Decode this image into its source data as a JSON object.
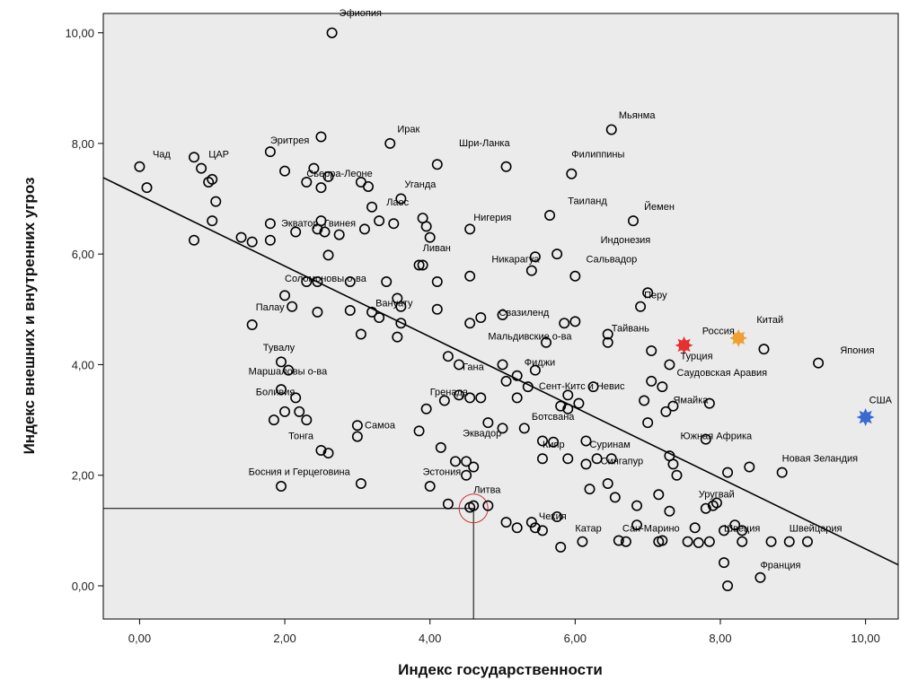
{
  "chart_data": {
    "type": "scatter",
    "xlabel": "Индекс государственности",
    "ylabel": "Индекс внешних и внутренних угроз",
    "xlim": [
      -0.5,
      10.45
    ],
    "ylim": [
      -0.6,
      10.35
    ],
    "x_ticks": [
      0,
      2,
      4,
      6,
      8,
      10
    ],
    "y_ticks": [
      0,
      2,
      4,
      6,
      8,
      10
    ],
    "x_tick_labels": [
      "0,00",
      "2,00",
      "4,00",
      "6,00",
      "8,00",
      "10,00"
    ],
    "y_tick_labels": [
      "0,00",
      "2,00",
      "4,00",
      "6,00",
      "8,00",
      "10,00"
    ],
    "grid": false,
    "regression_line": {
      "x": [
        -0.5,
        10.45
      ],
      "y": [
        7.38,
        0.38
      ]
    },
    "reference": {
      "x": 4.6,
      "y": 1.4,
      "circle_color": "#cc3333"
    },
    "highlighted": [
      {
        "label": "Россия",
        "x": 7.5,
        "y": 4.35,
        "color": "#e83030"
      },
      {
        "label": "Китай",
        "x": 8.25,
        "y": 4.48,
        "color": "#f0a030"
      },
      {
        "label": "США",
        "x": 10.0,
        "y": 3.05,
        "color": "#3a6ad0"
      }
    ],
    "labels": [
      {
        "text": "Эфиопия",
        "x": 2.75,
        "y": 10.3
      },
      {
        "text": "Мьянма",
        "x": 6.6,
        "y": 8.45
      },
      {
        "text": "Ирак",
        "x": 3.55,
        "y": 8.2
      },
      {
        "text": "Шри-Ланка",
        "x": 4.4,
        "y": 7.95
      },
      {
        "text": "Эритрея",
        "x": 1.8,
        "y": 8.0
      },
      {
        "text": "Чад",
        "x": 0.18,
        "y": 7.75
      },
      {
        "text": "ЦАР",
        "x": 0.95,
        "y": 7.75
      },
      {
        "text": "Филиппины",
        "x": 5.95,
        "y": 7.75
      },
      {
        "text": "Сьерра-Леоне",
        "x": 2.3,
        "y": 7.4
      },
      {
        "text": "Уганда",
        "x": 3.65,
        "y": 7.2
      },
      {
        "text": "Таиланд",
        "x": 5.9,
        "y": 6.9
      },
      {
        "text": "Йемен",
        "x": 6.95,
        "y": 6.8
      },
      {
        "text": "Лаос",
        "x": 3.4,
        "y": 6.88
      },
      {
        "text": "Нигерия",
        "x": 4.6,
        "y": 6.6
      },
      {
        "text": "Экватор. Гвинея",
        "x": 1.95,
        "y": 6.5
      },
      {
        "text": "Индонезия",
        "x": 6.35,
        "y": 6.2
      },
      {
        "text": "Ливан",
        "x": 3.9,
        "y": 6.05
      },
      {
        "text": "Никарагуа",
        "x": 4.85,
        "y": 5.85
      },
      {
        "text": "Сальвадор",
        "x": 6.15,
        "y": 5.85
      },
      {
        "text": "Соломоновы о-ва",
        "x": 2.0,
        "y": 5.5
      },
      {
        "text": "Перу",
        "x": 6.95,
        "y": 5.2
      },
      {
        "text": "Палау",
        "x": 1.6,
        "y": 4.98
      },
      {
        "text": "Вануату",
        "x": 3.25,
        "y": 5.05
      },
      {
        "text": "Свазиленд",
        "x": 4.95,
        "y": 4.88
      },
      {
        "text": "Тайвань",
        "x": 6.5,
        "y": 4.6
      },
      {
        "text": "Россия",
        "x": 7.75,
        "y": 4.55
      },
      {
        "text": "Китай",
        "x": 8.5,
        "y": 4.75
      },
      {
        "text": "Мальдивские о-ва",
        "x": 4.8,
        "y": 4.45
      },
      {
        "text": "Тувалу",
        "x": 1.7,
        "y": 4.25
      },
      {
        "text": "Турция",
        "x": 7.45,
        "y": 4.1
      },
      {
        "text": "Япония",
        "x": 9.65,
        "y": 4.2
      },
      {
        "text": "Фиджи",
        "x": 5.3,
        "y": 3.98
      },
      {
        "text": "Гана",
        "x": 4.45,
        "y": 3.9
      },
      {
        "text": "Маршаловы о-ва",
        "x": 1.5,
        "y": 3.82
      },
      {
        "text": "Саудовская Аравия",
        "x": 7.4,
        "y": 3.8
      },
      {
        "text": "Сент-Китс и Невис",
        "x": 5.5,
        "y": 3.55
      },
      {
        "text": "Боливия",
        "x": 1.6,
        "y": 3.45
      },
      {
        "text": "Гренада",
        "x": 4.0,
        "y": 3.45
      },
      {
        "text": "США",
        "x": 10.05,
        "y": 3.3
      },
      {
        "text": "Ямайка",
        "x": 7.35,
        "y": 3.3
      },
      {
        "text": "Ботсвана",
        "x": 5.4,
        "y": 3.0
      },
      {
        "text": "Самоа",
        "x": 3.1,
        "y": 2.85
      },
      {
        "text": "Тонга",
        "x": 2.05,
        "y": 2.65
      },
      {
        "text": "Эквадор",
        "x": 4.45,
        "y": 2.7
      },
      {
        "text": "Южная Африка",
        "x": 7.45,
        "y": 2.65
      },
      {
        "text": "Кипр",
        "x": 5.55,
        "y": 2.5
      },
      {
        "text": "Суринам",
        "x": 6.2,
        "y": 2.5
      },
      {
        "text": "Новая Зеландия",
        "x": 8.85,
        "y": 2.25
      },
      {
        "text": "Сингапур",
        "x": 6.35,
        "y": 2.2
      },
      {
        "text": "Босния и Герцеговина",
        "x": 1.5,
        "y": 2.0
      },
      {
        "text": "Эстония",
        "x": 3.9,
        "y": 2.0
      },
      {
        "text": "Уругвай",
        "x": 7.7,
        "y": 1.6
      },
      {
        "text": "Литва",
        "x": 4.6,
        "y": 1.68
      },
      {
        "text": "Чехия",
        "x": 5.5,
        "y": 1.2
      },
      {
        "text": "Катар",
        "x": 6.0,
        "y": 0.98
      },
      {
        "text": "Сан-Марино",
        "x": 6.65,
        "y": 0.98
      },
      {
        "text": "Швеция",
        "x": 8.05,
        "y": 0.98
      },
      {
        "text": "Швейцария",
        "x": 8.95,
        "y": 0.98
      },
      {
        "text": "Франция",
        "x": 8.55,
        "y": 0.32
      }
    ],
    "series": [
      {
        "points": [
          [
            2.65,
            10.0
          ],
          [
            0.0,
            7.58
          ],
          [
            0.1,
            7.2
          ],
          [
            0.75,
            7.75
          ],
          [
            0.85,
            7.55
          ],
          [
            0.95,
            7.3
          ],
          [
            1.0,
            7.35
          ],
          [
            1.05,
            6.95
          ],
          [
            1.0,
            6.6
          ],
          [
            0.75,
            6.25
          ],
          [
            1.8,
            7.85
          ],
          [
            2.5,
            8.12
          ],
          [
            2.0,
            7.5
          ],
          [
            2.3,
            7.3
          ],
          [
            2.4,
            7.55
          ],
          [
            2.5,
            7.2
          ],
          [
            2.6,
            7.4
          ],
          [
            3.05,
            7.3
          ],
          [
            3.15,
            7.22
          ],
          [
            3.45,
            8.0
          ],
          [
            4.1,
            7.62
          ],
          [
            5.05,
            7.58
          ],
          [
            6.5,
            8.25
          ],
          [
            5.95,
            7.45
          ],
          [
            3.2,
            6.85
          ],
          [
            3.3,
            6.6
          ],
          [
            3.5,
            6.55
          ],
          [
            3.6,
            7.0
          ],
          [
            3.9,
            6.65
          ],
          [
            3.95,
            6.5
          ],
          [
            4.0,
            6.3
          ],
          [
            4.55,
            6.45
          ],
          [
            1.4,
            6.3
          ],
          [
            1.55,
            6.22
          ],
          [
            1.8,
            6.55
          ],
          [
            1.8,
            6.25
          ],
          [
            2.15,
            6.4
          ],
          [
            2.45,
            6.45
          ],
          [
            2.5,
            6.6
          ],
          [
            2.55,
            6.4
          ],
          [
            2.75,
            6.35
          ],
          [
            2.6,
            5.98
          ],
          [
            3.1,
            6.45
          ],
          [
            5.65,
            6.7
          ],
          [
            6.8,
            6.6
          ],
          [
            5.75,
            6.0
          ],
          [
            5.45,
            5.95
          ],
          [
            3.85,
            5.8
          ],
          [
            3.9,
            5.8
          ],
          [
            4.1,
            5.5
          ],
          [
            4.55,
            5.6
          ],
          [
            5.4,
            5.7
          ],
          [
            6.0,
            5.6
          ],
          [
            7.0,
            5.3
          ],
          [
            6.9,
            5.05
          ],
          [
            2.3,
            5.5
          ],
          [
            2.45,
            5.5
          ],
          [
            2.9,
            5.5
          ],
          [
            3.4,
            5.5
          ],
          [
            3.55,
            5.2
          ],
          [
            3.6,
            5.05
          ],
          [
            2.0,
            5.25
          ],
          [
            2.1,
            5.05
          ],
          [
            1.55,
            4.72
          ],
          [
            2.45,
            4.95
          ],
          [
            2.9,
            4.98
          ],
          [
            3.2,
            4.95
          ],
          [
            3.3,
            4.85
          ],
          [
            3.6,
            4.75
          ],
          [
            3.55,
            4.5
          ],
          [
            3.05,
            4.55
          ],
          [
            4.1,
            5.0
          ],
          [
            4.55,
            4.75
          ],
          [
            4.7,
            4.85
          ],
          [
            5.0,
            4.9
          ],
          [
            5.85,
            4.75
          ],
          [
            6.0,
            4.78
          ],
          [
            6.45,
            4.55
          ],
          [
            6.45,
            4.4
          ],
          [
            5.6,
            4.4
          ],
          [
            7.5,
            4.35
          ],
          [
            8.25,
            4.48
          ],
          [
            8.6,
            4.28
          ],
          [
            9.35,
            4.03
          ],
          [
            7.05,
            4.25
          ],
          [
            7.3,
            4.0
          ],
          [
            1.95,
            4.05
          ],
          [
            2.05,
            3.9
          ],
          [
            4.25,
            4.15
          ],
          [
            4.4,
            4.0
          ],
          [
            5.0,
            4.0
          ],
          [
            5.45,
            3.9
          ],
          [
            5.2,
            3.8
          ],
          [
            5.05,
            3.7
          ],
          [
            5.35,
            3.6
          ],
          [
            1.95,
            3.55
          ],
          [
            2.15,
            3.4
          ],
          [
            2.0,
            3.15
          ],
          [
            1.85,
            3.0
          ],
          [
            2.2,
            3.15
          ],
          [
            2.3,
            3.0
          ],
          [
            3.95,
            3.2
          ],
          [
            4.2,
            3.35
          ],
          [
            4.4,
            3.45
          ],
          [
            4.55,
            3.4
          ],
          [
            4.7,
            3.4
          ],
          [
            5.2,
            3.4
          ],
          [
            5.9,
            3.45
          ],
          [
            6.25,
            3.6
          ],
          [
            6.95,
            3.35
          ],
          [
            7.05,
            3.7
          ],
          [
            7.2,
            3.6
          ],
          [
            7.25,
            3.15
          ],
          [
            7.35,
            3.25
          ],
          [
            7.85,
            3.3
          ],
          [
            7.0,
            2.95
          ],
          [
            5.8,
            3.25
          ],
          [
            5.9,
            3.2
          ],
          [
            6.05,
            3.3
          ],
          [
            3.0,
            2.9
          ],
          [
            3.0,
            2.7
          ],
          [
            2.5,
            2.45
          ],
          [
            2.6,
            2.4
          ],
          [
            3.85,
            2.8
          ],
          [
            4.15,
            2.5
          ],
          [
            4.35,
            2.25
          ],
          [
            4.5,
            2.25
          ],
          [
            4.8,
            2.95
          ],
          [
            5.0,
            2.85
          ],
          [
            5.3,
            2.85
          ],
          [
            5.55,
            2.62
          ],
          [
            5.7,
            2.6
          ],
          [
            6.15,
            2.62
          ],
          [
            6.3,
            2.3
          ],
          [
            6.5,
            2.3
          ],
          [
            6.15,
            2.2
          ],
          [
            5.55,
            2.3
          ],
          [
            5.9,
            2.3
          ],
          [
            7.3,
            2.35
          ],
          [
            7.35,
            2.2
          ],
          [
            7.4,
            2.0
          ],
          [
            7.8,
            2.65
          ],
          [
            8.1,
            2.05
          ],
          [
            8.4,
            2.15
          ],
          [
            8.85,
            2.05
          ],
          [
            1.95,
            1.8
          ],
          [
            3.05,
            1.85
          ],
          [
            4.0,
            1.8
          ],
          [
            4.5,
            2.0
          ],
          [
            4.6,
            2.15
          ],
          [
            4.25,
            1.48
          ],
          [
            4.55,
            1.42
          ],
          [
            4.6,
            1.45
          ],
          [
            4.8,
            1.45
          ],
          [
            5.05,
            1.15
          ],
          [
            5.2,
            1.05
          ],
          [
            5.4,
            1.15
          ],
          [
            5.45,
            1.05
          ],
          [
            5.55,
            1.0
          ],
          [
            5.75,
            1.25
          ],
          [
            5.8,
            0.7
          ],
          [
            6.2,
            1.75
          ],
          [
            6.55,
            1.6
          ],
          [
            6.45,
            1.85
          ],
          [
            6.85,
            1.45
          ],
          [
            7.15,
            1.65
          ],
          [
            7.3,
            1.35
          ],
          [
            7.8,
            1.4
          ],
          [
            7.9,
            1.45
          ],
          [
            7.95,
            1.5
          ],
          [
            6.1,
            0.8
          ],
          [
            6.6,
            0.82
          ],
          [
            6.7,
            0.8
          ],
          [
            6.85,
            1.1
          ],
          [
            7.15,
            0.8
          ],
          [
            7.2,
            0.82
          ],
          [
            7.55,
            0.8
          ],
          [
            7.7,
            0.78
          ],
          [
            7.85,
            0.8
          ],
          [
            7.65,
            1.05
          ],
          [
            8.05,
            1.0
          ],
          [
            8.2,
            1.1
          ],
          [
            8.3,
            0.8
          ],
          [
            8.3,
            1.0
          ],
          [
            8.7,
            0.8
          ],
          [
            8.95,
            0.8
          ],
          [
            9.2,
            0.8
          ],
          [
            8.05,
            0.42
          ],
          [
            8.1,
            0.0
          ],
          [
            8.55,
            0.15
          ]
        ]
      }
    ]
  }
}
